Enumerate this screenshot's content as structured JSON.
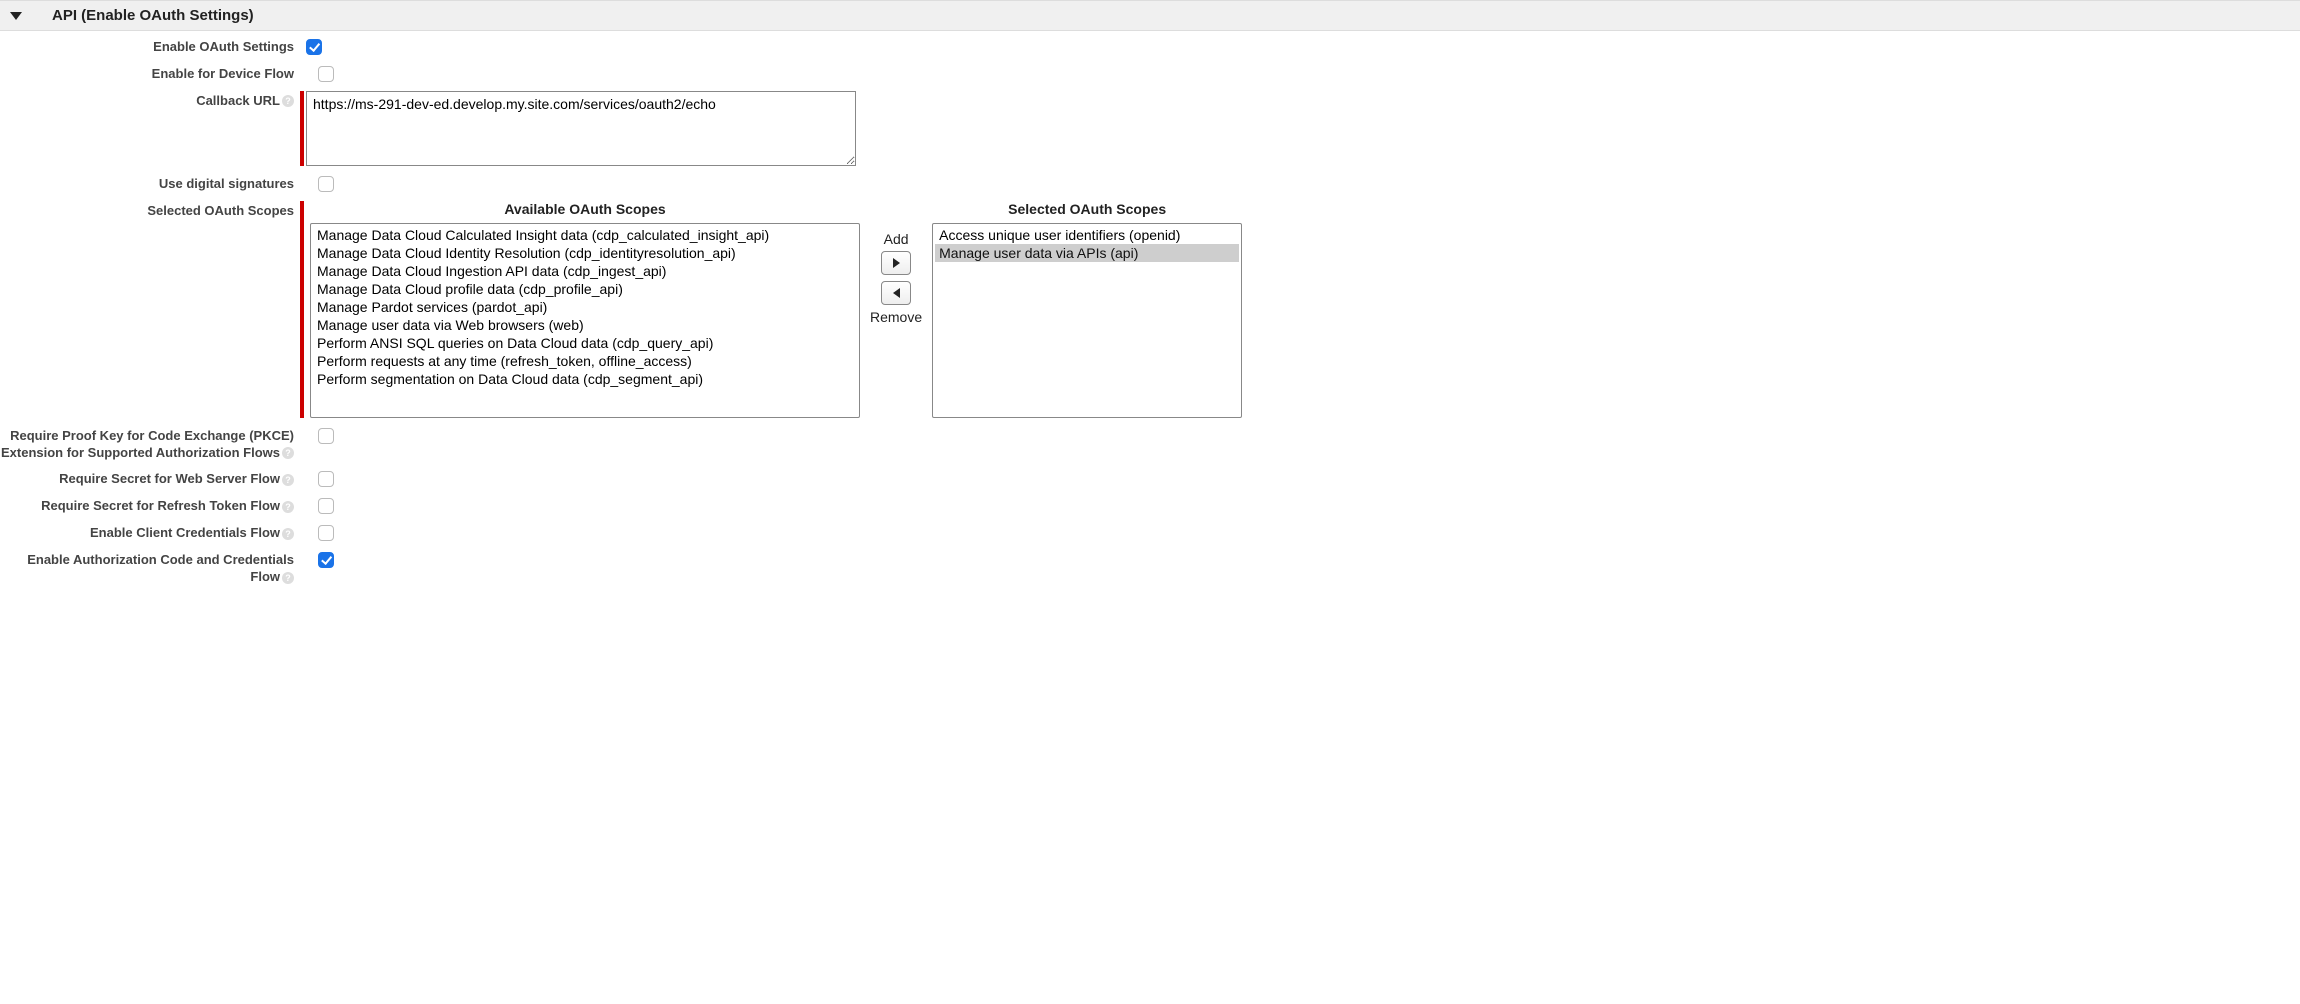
{
  "section": {
    "title": "API (Enable OAuth Settings)"
  },
  "labels": {
    "enable_oauth": "Enable OAuth Settings",
    "enable_device_flow": "Enable for Device Flow",
    "callback_url": "Callback URL",
    "use_digital_signatures": "Use digital signatures",
    "selected_oauth_scopes": "Selected OAuth Scopes",
    "require_pkce": "Require Proof Key for Code Exchange (PKCE) Extension for Supported Authorization Flows",
    "require_secret_web": "Require Secret for Web Server Flow",
    "require_secret_refresh": "Require Secret for Refresh Token Flow",
    "enable_client_credentials": "Enable Client Credentials Flow",
    "enable_auth_code_credentials": "Enable Authorization Code and Credentials Flow"
  },
  "values": {
    "enable_oauth_checked": true,
    "enable_device_flow_checked": false,
    "callback_url": "https://ms-291-dev-ed.develop.my.site.com/services/oauth2/echo",
    "use_digital_signatures_checked": false,
    "require_pkce_checked": false,
    "require_secret_web_checked": false,
    "require_secret_refresh_checked": false,
    "enable_client_credentials_checked": false,
    "enable_auth_code_credentials_checked": true
  },
  "scopes": {
    "available_title": "Available OAuth Scopes",
    "selected_title": "Selected OAuth Scopes",
    "add_label": "Add",
    "remove_label": "Remove",
    "available": [
      "Manage Data Cloud Calculated Insight data (cdp_calculated_insight_api)",
      "Manage Data Cloud Identity Resolution (cdp_identityresolution_api)",
      "Manage Data Cloud Ingestion API data (cdp_ingest_api)",
      "Manage Data Cloud profile data (cdp_profile_api)",
      "Manage Pardot services (pardot_api)",
      "Manage user data via Web browsers (web)",
      "Perform ANSI SQL queries on Data Cloud data (cdp_query_api)",
      "Perform requests at any time (refresh_token, offline_access)",
      "Perform segmentation on Data Cloud data (cdp_segment_api)"
    ],
    "selected": [
      "Access unique user identifiers (openid)",
      "Manage user data via APIs (api)"
    ],
    "selected_highlight_index": 1
  },
  "colors": {
    "header_bg": "#f0f0f0",
    "required_bar": "#c00000",
    "checkbox_checked": "#1a73e8",
    "border_gray": "#888888"
  }
}
